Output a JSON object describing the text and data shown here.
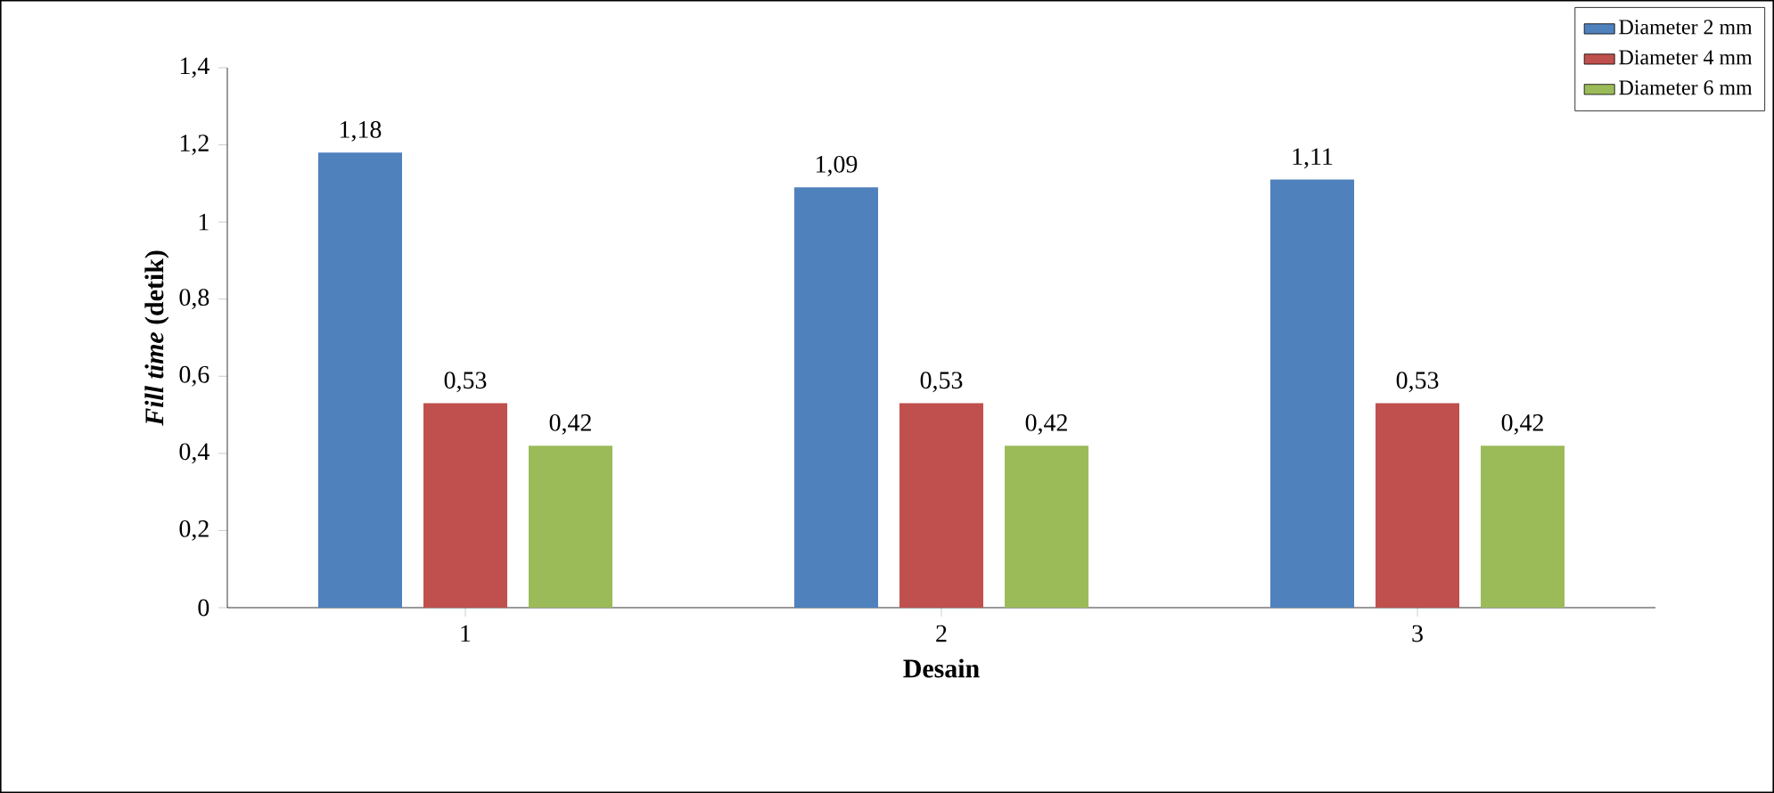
{
  "chart_data": {
    "type": "bar",
    "xlabel": "Desain",
    "ylabel": "*Fill time* (detik)",
    "categories": [
      "1",
      "2",
      "3"
    ],
    "series": [
      {
        "name": "Diameter 2 mm",
        "color": "#4f81bd",
        "values": [
          1.18,
          1.09,
          1.11
        ],
        "value_labels": [
          "1,18",
          "1,09",
          "1,11"
        ]
      },
      {
        "name": "Diameter 4 mm",
        "color": "#c0504d",
        "values": [
          0.53,
          0.53,
          0.53
        ],
        "value_labels": [
          "0,53",
          "0,53",
          "0,53"
        ]
      },
      {
        "name": "Diameter 6 mm",
        "color": "#9bbb59",
        "values": [
          0.42,
          0.42,
          0.42
        ],
        "value_labels": [
          "0,42",
          "0,42",
          "0,42"
        ]
      }
    ],
    "ylim": [
      0,
      1.4
    ],
    "yticks": [
      0,
      {
        "value": 0.2,
        "label": "0,2"
      },
      {
        "value": 0.4,
        "label": "0,4"
      },
      {
        "value": 0.6,
        "label": "0,6"
      },
      {
        "value": 0.8,
        "label": "0,8"
      },
      1,
      {
        "value": 1.2,
        "label": "1,2"
      },
      {
        "value": 1.4,
        "label": "1,4"
      }
    ],
    "legend": "top right",
    "grid": false
  }
}
